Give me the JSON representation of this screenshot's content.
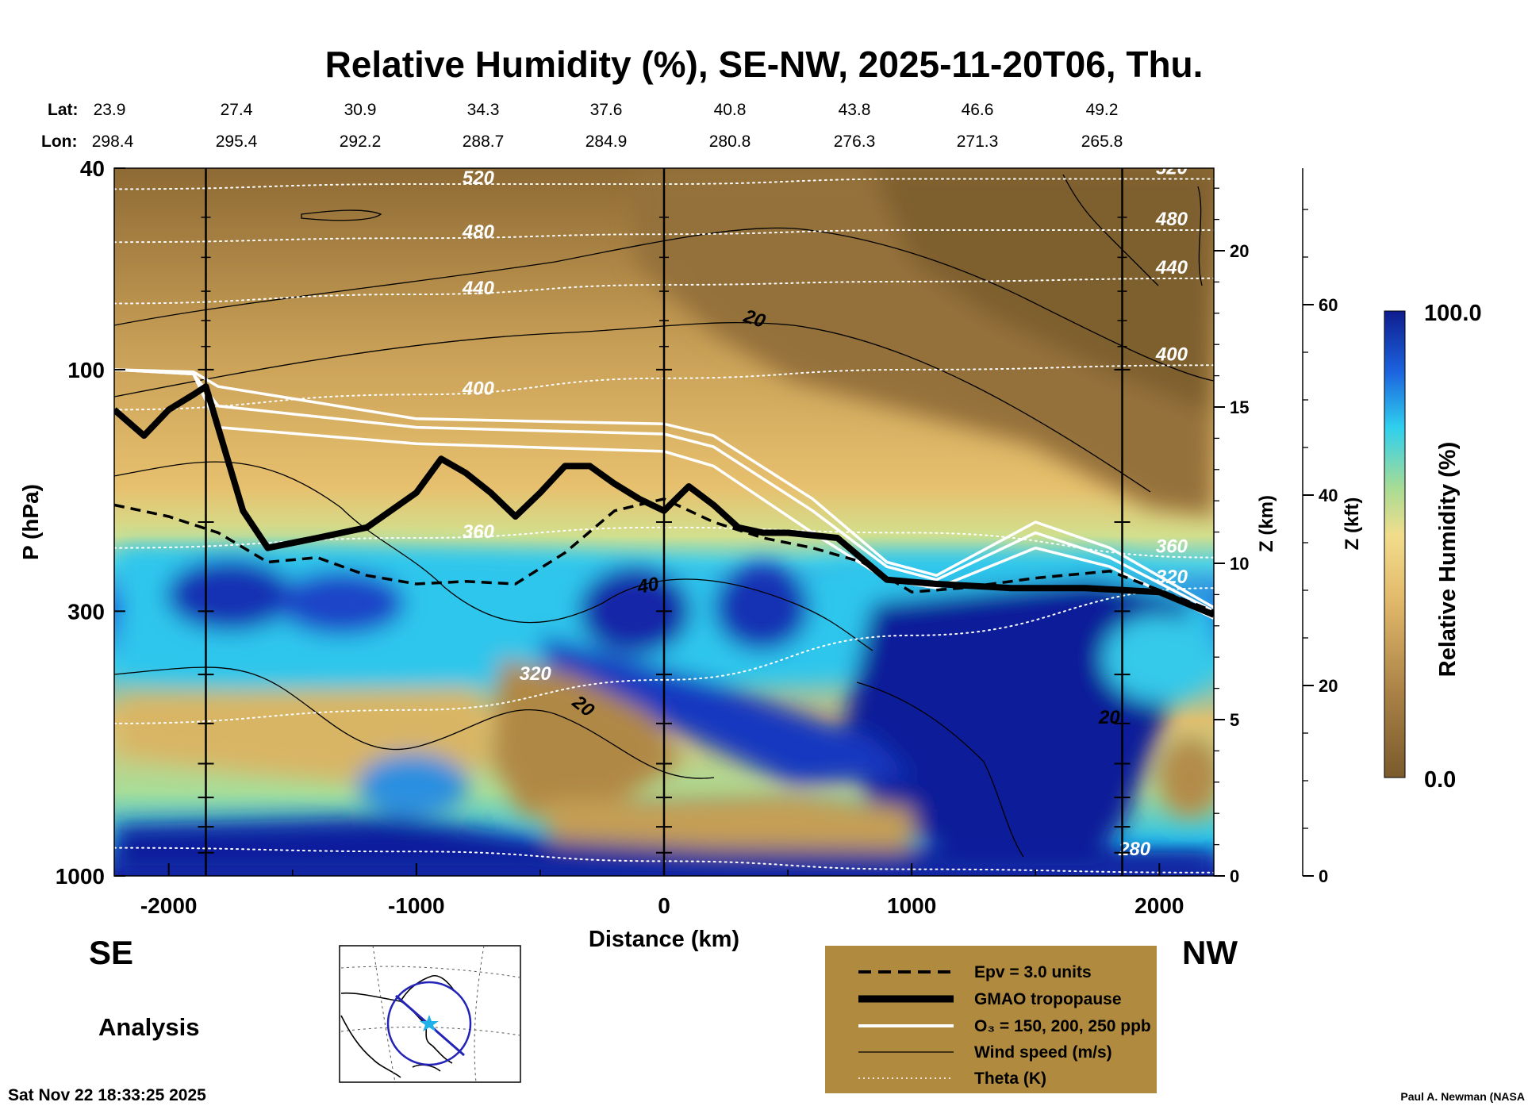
{
  "chart_data": {
    "type": "heatmap",
    "title": "Relative Humidity (%), SE-NW, 2025-11-20T06, Thu.",
    "xlabel": "Distance (km)",
    "ylabel": "P (hPa)",
    "xlim": [
      -2220,
      2220
    ],
    "ylim": [
      1000,
      40
    ],
    "yscale": "log",
    "x_ticks": [
      -2000,
      -1000,
      0,
      1000,
      2000
    ],
    "x_tick_labels": [
      "-2000",
      "-1000",
      "0",
      "1000",
      "2000"
    ],
    "y_ticks": [
      40,
      100,
      300,
      1000
    ],
    "y_tick_labels": [
      "40",
      "100",
      "300",
      "1000"
    ],
    "lat_label": "Lat:",
    "lon_label": "Lon:",
    "lat_ticks": [
      "23.9",
      "27.4",
      "30.9",
      "34.3",
      "37.6",
      "40.8",
      "43.8",
      "46.6",
      "49.2"
    ],
    "lon_ticks": [
      "298.4",
      "295.4",
      "292.2",
      "288.7",
      "284.9",
      "280.8",
      "276.3",
      "271.3",
      "265.8"
    ],
    "z_km": {
      "label": "Z (km)",
      "ticks": [
        0,
        5,
        10,
        15,
        20
      ],
      "tick_labels": [
        "0",
        "5",
        "10",
        "15",
        "20"
      ]
    },
    "z_kft": {
      "label": "Z (kft)",
      "ticks": [
        0,
        20,
        40,
        60
      ],
      "tick_labels": [
        "0",
        "20",
        "40",
        "60"
      ]
    },
    "colorbar": {
      "label": "Relative Humidity (%)",
      "min": 0.0,
      "max": 100.0,
      "min_label": "0.0",
      "max_label": "100.0"
    },
    "vertical_lines_km": [
      -1850,
      0,
      1850
    ],
    "theta_contours": [
      {
        "value": 280,
        "label": "280",
        "y": [
          880,
          895,
          935,
          970,
          985
        ]
      },
      {
        "value": 320,
        "label": "320",
        "y": [
          500,
          470,
          410,
          335,
          270
        ]
      },
      {
        "value": 360,
        "label": "360",
        "y": [
          225,
          215,
          205,
          210,
          235
        ]
      },
      {
        "value": 400,
        "label": "400",
        "y": [
          120,
          112,
          104,
          100,
          98
        ]
      },
      {
        "value": 440,
        "label": "440",
        "y": [
          74,
          71,
          68,
          67,
          66
        ]
      },
      {
        "value": 480,
        "label": "480",
        "y": [
          56,
          55,
          54,
          53,
          53
        ]
      },
      {
        "value": 520,
        "label": "520",
        "y": [
          44,
          43,
          43,
          42,
          42
        ]
      }
    ],
    "theta_contour_x": [
      -2220,
      -1000,
      0,
      1000,
      2220
    ],
    "wind_labels": [
      "20",
      "40",
      "20",
      "20"
    ],
    "tropopause": {
      "x": [
        -2220,
        -2100,
        -2000,
        -1900,
        -1850,
        -1700,
        -1600,
        -1400,
        -1200,
        -1000,
        -900,
        -800,
        -700,
        -600,
        -500,
        -400,
        -300,
        -200,
        -100,
        0,
        100,
        200,
        300,
        400,
        500,
        700,
        900,
        1100,
        1400,
        1700,
        2000,
        2220
      ],
      "p": [
        120,
        135,
        120,
        112,
        108,
        190,
        225,
        215,
        205,
        175,
        150,
        160,
        175,
        195,
        175,
        155,
        155,
        168,
        180,
        190,
        170,
        185,
        205,
        210,
        210,
        215,
        260,
        265,
        270,
        270,
        275,
        305
      ]
    },
    "epv": {
      "x": [
        -2220,
        -2000,
        -1800,
        -1600,
        -1400,
        -1200,
        -1000,
        -800,
        -600,
        -400,
        -200,
        0,
        200,
        400,
        600,
        800,
        1000,
        1200,
        1500,
        1800,
        2220
      ],
      "p": [
        185,
        195,
        210,
        240,
        235,
        255,
        265,
        262,
        265,
        230,
        190,
        180,
        200,
        215,
        225,
        240,
        275,
        270,
        258,
        250,
        300
      ]
    },
    "ozone": [
      {
        "value": 150,
        "x": [
          -2220,
          -1900,
          -1800,
          -1000,
          0,
          200,
          600,
          900,
          1100,
          1500,
          1800,
          2220
        ],
        "p": [
          100,
          102,
          130,
          140,
          145,
          155,
          210,
          260,
          270,
          225,
          245,
          310
        ]
      },
      {
        "value": 200,
        "x": [
          -2220,
          -1900,
          -1800,
          -1000,
          0,
          200,
          600,
          900,
          1100,
          1500,
          1800,
          2220
        ],
        "p": [
          100,
          102,
          118,
          130,
          134,
          142,
          190,
          245,
          260,
          210,
          235,
          300
        ]
      },
      {
        "value": 250,
        "x": [
          -2220,
          -1900,
          -1800,
          -1000,
          0,
          200,
          600,
          900,
          1100,
          1500,
          1800,
          2220
        ],
        "p": [
          100,
          101,
          108,
          125,
          128,
          135,
          180,
          240,
          255,
          200,
          225,
          295
        ]
      }
    ],
    "legend": {
      "position": "bottom-center",
      "entries": [
        {
          "style": "dashed",
          "label": "Epv = 3.0 units"
        },
        {
          "style": "thick",
          "label": "GMAO tropopause"
        },
        {
          "style": "white",
          "label": "O₃ = 150, 200, 250 ppb"
        },
        {
          "style": "thin",
          "label": "Wind speed (m/s)"
        },
        {
          "style": "dotted",
          "label": "Theta (K)"
        }
      ]
    },
    "left_direction": "SE",
    "right_direction": "NW",
    "analysis_label": "Analysis",
    "timestamp": "Sat Nov 22 18:33:25 2025",
    "credit": "Paul A. Newman (NASA"
  },
  "colors": {
    "brown_dark": "#7a5a2c",
    "brown_mid": "#b08c4e",
    "tan": "#e8c070",
    "green": "#9bd38a",
    "cyan": "#33d2f0",
    "blue": "#1f5fdc",
    "navy": "#101b98",
    "legend_bg": "#b08a3e"
  }
}
